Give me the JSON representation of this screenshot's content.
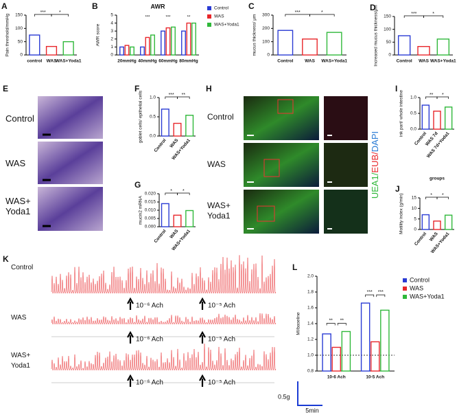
{
  "chart_data": [
    {
      "panel": "A",
      "type": "bar",
      "ylabel": "Pain threshold/mmHg",
      "categories": [
        "control",
        "WAS",
        "WAS+Yoda1"
      ],
      "values": [
        75,
        32,
        50
      ],
      "colors": [
        "#2a3bd4",
        "#e8262a",
        "#2fb83a"
      ],
      "ylim": [
        0,
        150
      ],
      "yticks": [
        0,
        50,
        100,
        150
      ],
      "annotations": [
        "***",
        "*"
      ]
    },
    {
      "panel": "B",
      "type": "grouped_bar",
      "title": "AWR",
      "ylabel": "AWR score",
      "categories": [
        "20mmHg",
        "40mmHg",
        "60mmHg",
        "80mmHg"
      ],
      "series": [
        {
          "name": "Control",
          "color": "#2a3bd4",
          "values": [
            1,
            1,
            3,
            3
          ]
        },
        {
          "name": "WAS",
          "color": "#e8262a",
          "values": [
            1.2,
            2.2,
            3.4,
            4
          ]
        },
        {
          "name": "WAS+Yoda1",
          "color": "#2fb83a",
          "values": [
            1,
            2.5,
            3.5,
            4
          ]
        }
      ],
      "ylim": [
        0,
        5
      ],
      "yticks": [
        0,
        1,
        2,
        3,
        4,
        5
      ],
      "annotations": [
        null,
        "***",
        "***",
        "**"
      ],
      "legend": "right"
    },
    {
      "panel": "C",
      "type": "bar",
      "ylabel": "mucus thickness/ μm",
      "categories": [
        "Control",
        "WAS",
        "WAS+Yoda1"
      ],
      "values": [
        185,
        120,
        170
      ],
      "colors": [
        "#2a3bd4",
        "#e8262a",
        "#2fb83a"
      ],
      "ylim": [
        0,
        300
      ],
      "yticks": [
        0,
        100,
        200,
        300
      ],
      "annotations": [
        "***",
        "*"
      ]
    },
    {
      "panel": "D",
      "type": "bar",
      "ylabel": "Increased mucus thickness/μm",
      "categories": [
        "Control",
        "WAS",
        "WAS+Yoda1"
      ],
      "values": [
        75,
        33,
        62
      ],
      "colors": [
        "#2a3bd4",
        "#e8262a",
        "#2fb83a"
      ],
      "ylim": [
        0,
        150
      ],
      "yticks": [
        0,
        50,
        100,
        150
      ],
      "annotations": [
        "***",
        "*"
      ]
    },
    {
      "panel": "F",
      "type": "bar",
      "ylabel": "goblet cells/ epithelial cells",
      "categories": [
        "Control",
        "WAS",
        "WAS+Yoda1"
      ],
      "values": [
        0.7,
        0.33,
        0.54
      ],
      "colors": [
        "#2a3bd4",
        "#e8262a",
        "#2fb83a"
      ],
      "ylim": [
        0,
        1
      ],
      "yticks": [
        {
          "value": 0,
          "label": "0.0"
        },
        {
          "value": 0.5,
          "label": "0.5"
        },
        {
          "value": 1,
          "label": "1.0"
        }
      ],
      "annotations": [
        "***",
        "**"
      ]
    },
    {
      "panel": "G",
      "type": "bar",
      "ylabel": "mucin2 mRNA",
      "categories": [
        "Control",
        "WAS",
        "WAS+Yoda1"
      ],
      "values": [
        0.014,
        0.007,
        0.0098
      ],
      "colors": [
        "#2a3bd4",
        "#e8262a",
        "#2fb83a"
      ],
      "ylim": [
        0,
        0.02
      ],
      "yticks": [
        {
          "value": 0,
          "label": "0.000"
        },
        {
          "value": 0.005,
          "label": "0.005"
        },
        {
          "value": 0.01,
          "label": "0.010"
        },
        {
          "value": 0.015,
          "label": "0.015"
        },
        {
          "value": 0.02,
          "label": "0.020"
        }
      ],
      "annotations": [
        "*",
        "*"
      ]
    },
    {
      "panel": "I",
      "type": "bar",
      "ylabel": "ink part/ whole intestine",
      "xlabel": "groups",
      "categories": [
        "Control",
        "WAS 7d",
        "WAS 7d+Yoda1"
      ],
      "values": [
        0.76,
        0.57,
        0.7
      ],
      "colors": [
        "#2a3bd4",
        "#e8262a",
        "#2fb83a"
      ],
      "ylim": [
        0,
        1
      ],
      "yticks": [
        {
          "value": 0,
          "label": "0.0"
        },
        {
          "value": 0.5,
          "label": "0.5"
        },
        {
          "value": 1,
          "label": "1.0"
        }
      ],
      "annotations": [
        "**",
        "*"
      ]
    },
    {
      "panel": "J",
      "type": "bar",
      "ylabel": "Motility index (g/min)",
      "categories": [
        "Control",
        "WAS",
        "WAS+Yoda1"
      ],
      "values": [
        7,
        4,
        6.8
      ],
      "colors": [
        "#2a3bd4",
        "#e8262a",
        "#2fb83a"
      ],
      "ylim": [
        0,
        15
      ],
      "yticks": [
        0,
        5,
        10,
        15
      ],
      "annotations": [
        "*",
        "*"
      ]
    },
    {
      "panel": "L",
      "type": "grouped_bar",
      "ylabel": "MI/baseline",
      "categories": [
        "10-6 Ach",
        "10-5 Ach"
      ],
      "series": [
        {
          "name": "Control",
          "color": "#2a3bd4",
          "values": [
            1.27,
            1.66
          ]
        },
        {
          "name": "WAS",
          "color": "#e8262a",
          "values": [
            1.1,
            1.17
          ]
        },
        {
          "name": "WAS+Yoda1",
          "color": "#2fb83a",
          "values": [
            1.3,
            1.57
          ]
        }
      ],
      "ylim": [
        0.8,
        2
      ],
      "yticks": [
        0.8,
        {
          "value": 1,
          "label": "1.0"
        },
        1.2,
        1.4,
        1.6,
        1.8,
        {
          "value": 2,
          "label": "2.0"
        }
      ],
      "reference_line": 1,
      "annotations": [
        [
          "**",
          "**"
        ],
        [
          "***",
          "***"
        ]
      ],
      "legend": "right"
    }
  ],
  "E": {
    "panel": "E",
    "labels": [
      "Control",
      "WAS",
      "WAS+ Yoda1"
    ]
  },
  "H": {
    "panel": "H",
    "labels": [
      "Control",
      "WAS",
      "WAS+ Yoda1"
    ],
    "stain": [
      "UEA1/",
      "EUB/",
      "DAPI"
    ]
  },
  "K": {
    "panel": "K",
    "labels": [
      "Control",
      "WAS",
      "WAS+ Yoda1"
    ],
    "markers": [
      "10⁻⁶ Ach",
      "10⁻⁵ Ach"
    ],
    "scale_y": "0.5g",
    "scale_x": "5min"
  }
}
